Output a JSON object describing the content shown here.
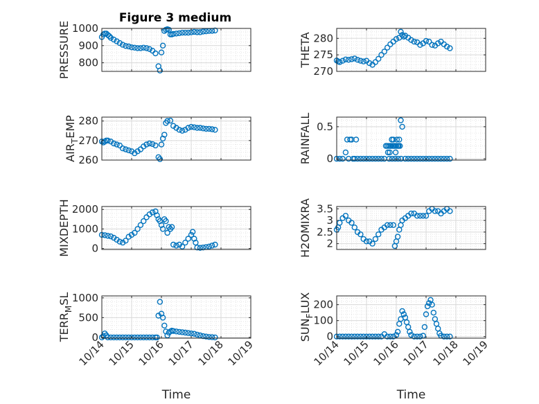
{
  "figure_title": "Figure 3 medium",
  "chart_data": [
    {
      "type": "scatter",
      "ylabel": "PRESSURE",
      "ylim": [
        750,
        1000
      ],
      "yticks": [
        800,
        900,
        1000
      ],
      "yticklabels": [
        "800",
        "900",
        "1000"
      ],
      "xlim": [
        0,
        5
      ],
      "xticks": [
        0,
        1,
        2,
        3,
        4,
        5
      ],
      "xticklabels": [
        "10/14",
        "10/15",
        "10/16",
        "10/17",
        "10/18",
        "10/19"
      ],
      "show_xticklabels": false,
      "xlabel": "",
      "x": [
        0.0,
        0.05,
        0.1,
        0.15,
        0.2,
        0.25,
        0.3,
        0.4,
        0.5,
        0.6,
        0.7,
        0.8,
        0.9,
        1.0,
        1.1,
        1.2,
        1.3,
        1.4,
        1.5,
        1.6,
        1.7,
        1.8,
        1.9,
        1.95,
        2.0,
        2.05,
        2.1,
        2.15,
        2.2,
        2.25,
        2.3,
        2.35,
        2.4,
        2.5,
        2.6,
        2.7,
        2.8,
        2.9,
        3.0,
        3.1,
        3.2,
        3.3,
        3.4,
        3.5,
        3.6,
        3.7,
        3.8
      ],
      "y": [
        950,
        965,
        970,
        970,
        962,
        955,
        945,
        935,
        925,
        915,
        905,
        898,
        895,
        890,
        888,
        885,
        885,
        888,
        885,
        880,
        870,
        855,
        780,
        755,
        860,
        900,
        985,
        992,
        995,
        992,
        965,
        965,
        968,
        970,
        972,
        975,
        975,
        975,
        977,
        980,
        978,
        978,
        982,
        983,
        985,
        986,
        988
      ]
    },
    {
      "type": "scatter",
      "ylabel": "THETA",
      "ylim": [
        270,
        283
      ],
      "yticks": [
        270,
        275,
        280
      ],
      "yticklabels": [
        "270",
        "275",
        "280"
      ],
      "xlim": [
        0,
        5
      ],
      "xticks": [
        0,
        1,
        2,
        3,
        4,
        5
      ],
      "xticklabels": [
        "10/14",
        "10/15",
        "10/16",
        "10/17",
        "10/18",
        "10/19"
      ],
      "show_xticklabels": false,
      "xlabel": "",
      "x": [
        0.0,
        0.05,
        0.1,
        0.2,
        0.3,
        0.4,
        0.5,
        0.6,
        0.7,
        0.8,
        0.9,
        1.0,
        1.1,
        1.2,
        1.3,
        1.4,
        1.5,
        1.6,
        1.7,
        1.8,
        1.9,
        2.0,
        2.1,
        2.15,
        2.2,
        2.25,
        2.3,
        2.4,
        2.5,
        2.6,
        2.7,
        2.8,
        2.9,
        3.0,
        3.1,
        3.2,
        3.3,
        3.4,
        3.5,
        3.6,
        3.7,
        3.8
      ],
      "y": [
        273.3,
        273.0,
        272.8,
        273.2,
        273.6,
        273.5,
        273.7,
        273.9,
        273.5,
        273.2,
        273.0,
        273.2,
        272.5,
        272.0,
        272.8,
        273.8,
        275.0,
        276.0,
        277.2,
        278.2,
        279.0,
        279.8,
        280.2,
        282.0,
        281.0,
        280.5,
        280.8,
        280.2,
        279.5,
        279.0,
        278.8,
        278.0,
        278.5,
        279.2,
        279.0,
        278.0,
        277.8,
        278.5,
        279.0,
        278.2,
        277.5,
        277.0
      ]
    },
    {
      "type": "scatter",
      "ylabel": "AIR_TEMP",
      "ylim": [
        260,
        282
      ],
      "yticks": [
        260,
        270,
        280
      ],
      "yticklabels": [
        "260",
        "270",
        "280"
      ],
      "xlim": [
        0,
        5
      ],
      "xticks": [
        0,
        1,
        2,
        3,
        4,
        5
      ],
      "xticklabels": [
        "10/14",
        "10/15",
        "10/16",
        "10/17",
        "10/18",
        "10/19"
      ],
      "show_xticklabels": false,
      "xlabel": "",
      "x": [
        0.0,
        0.05,
        0.1,
        0.15,
        0.2,
        0.3,
        0.4,
        0.5,
        0.6,
        0.7,
        0.8,
        0.9,
        1.0,
        1.1,
        1.2,
        1.3,
        1.4,
        1.5,
        1.6,
        1.7,
        1.8,
        1.9,
        1.95,
        2.0,
        2.05,
        2.1,
        2.15,
        2.2,
        2.3,
        2.4,
        2.5,
        2.6,
        2.7,
        2.8,
        2.9,
        3.0,
        3.1,
        3.2,
        3.3,
        3.4,
        3.5,
        3.6,
        3.7,
        3.8
      ],
      "y": [
        269.5,
        269.0,
        269.5,
        270.0,
        270.0,
        269.5,
        268.5,
        268.0,
        267.5,
        266.0,
        265.5,
        265.0,
        264.5,
        263.5,
        264.5,
        265.5,
        267.0,
        268.0,
        268.5,
        268.2,
        267.5,
        261.5,
        260.5,
        268.0,
        271.0,
        273.0,
        279.0,
        280.0,
        280.2,
        277.5,
        276.5,
        275.5,
        275.0,
        275.5,
        276.5,
        277.0,
        276.8,
        276.5,
        276.5,
        276.2,
        276.0,
        276.0,
        275.8,
        275.5
      ]
    },
    {
      "type": "scatter",
      "ylabel": "RAINFALL",
      "ylim": [
        -0.02,
        0.65
      ],
      "yticks": [
        0,
        0.5
      ],
      "yticklabels": [
        "0",
        "0.5"
      ],
      "xlim": [
        0,
        5
      ],
      "xticks": [
        0,
        1,
        2,
        3,
        4,
        5
      ],
      "xticklabels": [
        "10/14",
        "10/15",
        "10/16",
        "10/17",
        "10/18",
        "10/19"
      ],
      "show_xticklabels": false,
      "xlabel": "",
      "x": [
        0.0,
        0.1,
        0.2,
        0.3,
        0.35,
        0.4,
        0.45,
        0.5,
        0.55,
        0.6,
        0.65,
        0.7,
        0.8,
        0.9,
        1.0,
        1.1,
        1.2,
        1.3,
        1.4,
        1.5,
        1.6,
        1.65,
        1.7,
        1.75,
        1.8,
        1.85,
        1.9,
        1.95,
        2.0,
        2.05,
        2.1,
        2.15,
        2.2,
        2.3,
        2.4,
        2.5,
        2.6,
        2.7,
        2.8,
        2.9,
        3.0,
        3.1,
        3.2,
        3.3,
        3.4,
        3.5,
        3.6,
        3.7,
        3.8,
        1.72,
        1.78,
        1.82,
        1.88,
        1.92,
        1.98,
        2.02,
        2.08,
        2.12,
        2.16,
        1.76,
        1.86,
        1.96,
        2.06
      ],
      "y": [
        0,
        0,
        0,
        0.1,
        0.3,
        0.0,
        0.3,
        0.3,
        0.0,
        0.0,
        0.3,
        0.0,
        0,
        0,
        0,
        0,
        0,
        0,
        0,
        0,
        0,
        0.2,
        0.2,
        0.2,
        0.2,
        0.3,
        0.3,
        0.2,
        0.2,
        0.2,
        0.3,
        0.6,
        0.5,
        0,
        0,
        0,
        0,
        0,
        0,
        0,
        0,
        0,
        0,
        0,
        0,
        0,
        0,
        0,
        0,
        0.1,
        0.1,
        0.2,
        0.2,
        0.2,
        0.1,
        0.3,
        0.2,
        0.2,
        0,
        0,
        0,
        0,
        0
      ]
    },
    {
      "type": "scatter",
      "ylabel": "MIXDEPTH",
      "ylim": [
        -50,
        2150
      ],
      "yticks": [
        0,
        1000,
        2000
      ],
      "yticklabels": [
        "0",
        "1000",
        "2000"
      ],
      "xlim": [
        0,
        5
      ],
      "xticks": [
        0,
        1,
        2,
        3,
        4,
        5
      ],
      "xticklabels": [
        "10/14",
        "10/15",
        "10/16",
        "10/17",
        "10/18",
        "10/19"
      ],
      "show_xticklabels": false,
      "xlabel": "",
      "x": [
        0.0,
        0.1,
        0.2,
        0.3,
        0.4,
        0.5,
        0.6,
        0.7,
        0.8,
        0.9,
        1.0,
        1.1,
        1.2,
        1.3,
        1.4,
        1.5,
        1.6,
        1.7,
        1.8,
        1.85,
        1.9,
        1.95,
        2.0,
        2.05,
        2.1,
        2.15,
        2.2,
        2.25,
        2.3,
        2.35,
        2.4,
        2.5,
        2.6,
        2.7,
        2.8,
        2.9,
        3.0,
        3.05,
        3.1,
        3.15,
        3.2,
        3.3,
        3.4,
        3.5,
        3.6,
        3.7,
        3.8
      ],
      "y": [
        700,
        680,
        650,
        620,
        550,
        450,
        350,
        300,
        400,
        600,
        700,
        800,
        1000,
        1200,
        1400,
        1600,
        1750,
        1850,
        1900,
        1700,
        1500,
        1400,
        1200,
        1000,
        1500,
        1400,
        800,
        1100,
        1000,
        1100,
        200,
        150,
        200,
        100,
        300,
        500,
        700,
        850,
        500,
        300,
        50,
        30,
        50,
        70,
        100,
        150,
        200
      ]
    },
    {
      "type": "scatter",
      "ylabel": "H2OMIXRA",
      "ylim": [
        1.75,
        3.6
      ],
      "yticks": [
        2,
        2.5,
        3,
        3.5
      ],
      "yticklabels": [
        "2",
        "2.5",
        "3",
        "3.5"
      ],
      "xlim": [
        0,
        5
      ],
      "xticks": [
        0,
        1,
        2,
        3,
        4,
        5
      ],
      "xticklabels": [
        "10/14",
        "10/15",
        "10/16",
        "10/17",
        "10/18",
        "10/19"
      ],
      "show_xticklabels": false,
      "xlabel": "",
      "x": [
        0.0,
        0.05,
        0.1,
        0.2,
        0.3,
        0.4,
        0.5,
        0.6,
        0.7,
        0.8,
        0.9,
        1.0,
        1.1,
        1.2,
        1.3,
        1.4,
        1.5,
        1.6,
        1.7,
        1.8,
        1.9,
        1.95,
        2.0,
        2.05,
        2.1,
        2.15,
        2.2,
        2.3,
        2.4,
        2.5,
        2.6,
        2.7,
        2.8,
        2.9,
        3.0,
        3.1,
        3.2,
        3.3,
        3.4,
        3.5,
        3.6,
        3.7,
        3.8
      ],
      "y": [
        2.6,
        2.7,
        2.9,
        3.1,
        3.2,
        3.0,
        2.9,
        2.7,
        2.5,
        2.4,
        2.2,
        2.1,
        2.1,
        2.0,
        2.2,
        2.4,
        2.6,
        2.7,
        2.8,
        2.8,
        2.8,
        1.9,
        2.1,
        2.3,
        2.6,
        2.8,
        3.0,
        3.1,
        3.2,
        3.3,
        3.3,
        3.2,
        3.2,
        3.2,
        3.2,
        3.4,
        3.5,
        3.4,
        3.4,
        3.3,
        3.4,
        3.5,
        3.4
      ]
    },
    {
      "type": "scatter",
      "ylabel": "TERR_MSL",
      "ylim": [
        -20,
        1050
      ],
      "yticks": [
        0,
        500,
        1000
      ],
      "yticklabels": [
        "0",
        "500",
        "1000"
      ],
      "xlim": [
        0,
        5
      ],
      "xticks": [
        0,
        1,
        2,
        3,
        4,
        5
      ],
      "xticklabels": [
        "10/14",
        "10/15",
        "10/16",
        "10/17",
        "10/18",
        "10/19"
      ],
      "show_xticklabels": true,
      "xlabel": "Time",
      "x": [
        0.0,
        0.05,
        0.1,
        0.15,
        0.2,
        0.3,
        0.4,
        0.5,
        0.6,
        0.7,
        0.8,
        0.9,
        1.0,
        1.1,
        1.2,
        1.3,
        1.4,
        1.5,
        1.6,
        1.7,
        1.8,
        1.85,
        1.9,
        1.95,
        2.0,
        2.05,
        2.1,
        2.15,
        2.2,
        2.25,
        2.3,
        2.35,
        2.4,
        2.5,
        2.6,
        2.7,
        2.8,
        2.9,
        3.0,
        3.1,
        3.2,
        3.3,
        3.4,
        3.5,
        3.6,
        3.7,
        3.8
      ],
      "y": [
        0,
        30,
        100,
        50,
        0,
        0,
        0,
        0,
        0,
        0,
        0,
        0,
        0,
        0,
        0,
        0,
        0,
        0,
        0,
        0,
        0,
        0,
        550,
        900,
        600,
        500,
        300,
        150,
        50,
        120,
        150,
        170,
        160,
        150,
        140,
        130,
        120,
        110,
        100,
        90,
        70,
        50,
        30,
        20,
        10,
        5,
        0
      ]
    },
    {
      "type": "scatter",
      "ylabel": "SUN_FLUX",
      "ylim": [
        -10,
        255
      ],
      "yticks": [
        0,
        100,
        200
      ],
      "yticklabels": [
        "0",
        "100",
        "200"
      ],
      "xlim": [
        0,
        5
      ],
      "xticks": [
        0,
        1,
        2,
        3,
        4,
        5
      ],
      "xticklabels": [
        "10/14",
        "10/15",
        "10/16",
        "10/17",
        "10/18",
        "10/19"
      ],
      "show_xticklabels": true,
      "xlabel": "Time",
      "x": [
        0.0,
        0.1,
        0.2,
        0.3,
        0.4,
        0.5,
        0.6,
        0.7,
        0.8,
        0.9,
        1.0,
        1.1,
        1.2,
        1.3,
        1.4,
        1.5,
        1.6,
        1.7,
        1.8,
        1.9,
        2.0,
        2.05,
        2.1,
        2.15,
        2.2,
        2.25,
        2.3,
        2.35,
        2.4,
        2.45,
        2.5,
        2.6,
        2.7,
        2.8,
        2.9,
        2.95,
        3.0,
        3.05,
        3.1,
        3.15,
        3.2,
        3.25,
        3.3,
        3.35,
        3.4,
        3.45,
        3.5,
        3.6,
        3.7,
        3.8
      ],
      "y": [
        0,
        0,
        0,
        0,
        0,
        0,
        0,
        0,
        0,
        0,
        0,
        0,
        0,
        0,
        0,
        0,
        15,
        0,
        0,
        0,
        10,
        30,
        80,
        110,
        160,
        140,
        120,
        90,
        60,
        30,
        10,
        0,
        0,
        0,
        5,
        60,
        140,
        190,
        210,
        230,
        200,
        150,
        110,
        80,
        50,
        20,
        5,
        0,
        0,
        0
      ]
    }
  ]
}
